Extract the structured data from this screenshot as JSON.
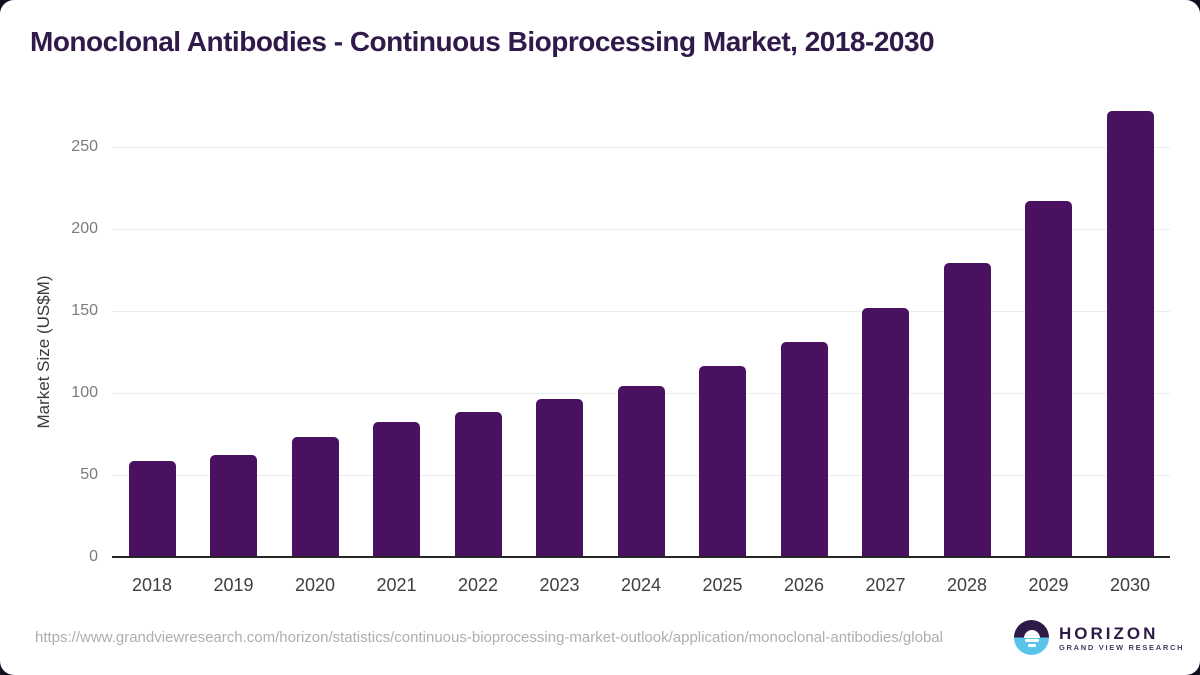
{
  "page": {
    "source_url": "https://www.grandviewresearch.com/horizon/statistics/continuous-bioprocessing-market-outlook/application/monoclonal-antibodies/global"
  },
  "chart_data": {
    "type": "bar",
    "title": "Monoclonal Antibodies - Continuous Bioprocessing Market, 2018-2030",
    "categories": [
      "2018",
      "2019",
      "2020",
      "2021",
      "2022",
      "2023",
      "2024",
      "2025",
      "2026",
      "2027",
      "2028",
      "2029",
      "2030"
    ],
    "values": [
      58,
      62,
      73,
      82,
      88,
      96,
      104,
      116,
      131,
      152,
      179,
      217,
      272
    ],
    "xlabel": "",
    "ylabel": "Market Size (US$M)",
    "ylim": [
      0,
      280
    ],
    "yticks": [
      0,
      50,
      100,
      150,
      200,
      250
    ],
    "grid": "horizontal-only",
    "legend": "none",
    "bar_color": "#4a1161"
  },
  "branding": {
    "logo_name": "HORIZON",
    "logo_subtitle": "GRAND VIEW RESEARCH"
  },
  "colors": {
    "title": "#301a4a",
    "bar": "#4a1161",
    "axis_line": "#262626",
    "gridline": "#ececec",
    "tick_label": "#7b7b7b",
    "x_label": "#3f3f3f",
    "url_text": "#aeaeae",
    "logo_purple": "#2e1a47",
    "logo_blue": "#5ac3ea",
    "background": "#ffffff",
    "corner_background": "#141021"
  }
}
